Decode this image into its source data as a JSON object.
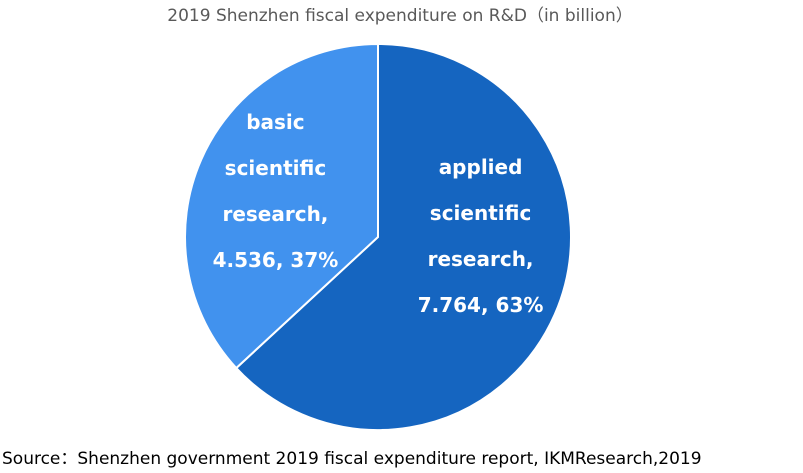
{
  "chart_data": {
    "type": "pie",
    "title": "2019 Shenzhen fiscal expenditure on R&D（in billion）",
    "source": "Source：Shenzhen government 2019 fiscal expenditure report, IKMResearch,2019",
    "categories": [
      "applied scientific research,",
      "basic scientific research,"
    ],
    "values": [
      7.764,
      4.536
    ],
    "value_labels": [
      "7.764,",
      "4.536,"
    ],
    "percent_labels": [
      "63%",
      "37%"
    ],
    "colors": [
      "#1565c0",
      "#4192ee"
    ]
  }
}
